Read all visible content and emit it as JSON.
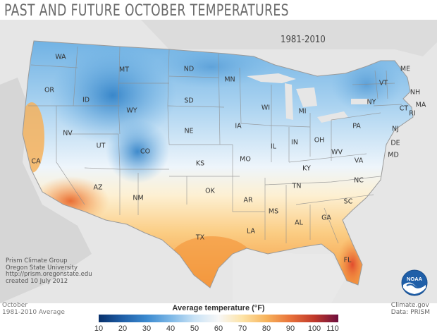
{
  "title": "PAST AND FUTURE OCTOBER TEMPERATURES",
  "period_label": "1981-2010",
  "states": [
    "WA",
    "OR",
    "ID",
    "MT",
    "WY",
    "ND",
    "SD",
    "NE",
    "MN",
    "IA",
    "WI",
    "MI",
    "NV",
    "CA",
    "UT",
    "CO",
    "KS",
    "MO",
    "IL",
    "IN",
    "OH",
    "PA",
    "NY",
    "VT",
    "ME",
    "NH",
    "MA",
    "CT",
    "RI",
    "NJ",
    "DE",
    "MD",
    "WV",
    "VA",
    "KY",
    "TN",
    "NC",
    "SC",
    "GA",
    "AL",
    "MS",
    "LA",
    "AR",
    "OK",
    "TX",
    "NM",
    "AZ",
    "FL"
  ],
  "credits": {
    "line1": "Prism Climate Group",
    "line2": "Oregon State University",
    "line3": "http://prism.oregonstate.edu",
    "line4": "created 10 July 2012"
  },
  "bottom_left": {
    "month": "October",
    "desc": "1981-2010 Average"
  },
  "source": {
    "site": "Climate.gov",
    "data": "Data: PRISM"
  },
  "legend": {
    "title": "Average temperature (°F)",
    "ticks": [
      "10",
      "20",
      "30",
      "40",
      "50",
      "60",
      "70",
      "80",
      "90",
      "100",
      "110"
    ],
    "colors": [
      "#08306b",
      "#1f5fa8",
      "#3b8ad0",
      "#7cb7e6",
      "#c9e2f5",
      "#f7f7f7",
      "#fde3a6",
      "#f7b35b",
      "#e8713a",
      "#c0392b",
      "#6e0f3f"
    ]
  },
  "logo_text": "NOAA"
}
